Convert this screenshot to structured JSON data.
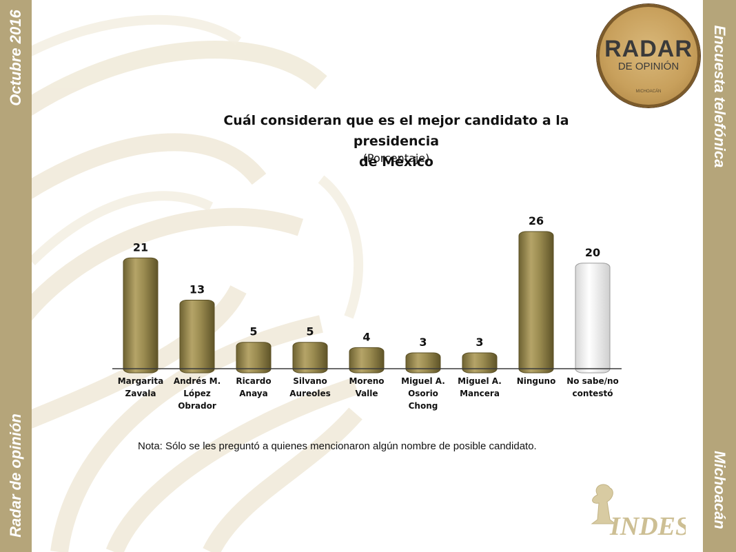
{
  "frame": {
    "top_left": "Octubre 2016",
    "bottom_left": "Radar de opinión",
    "top_right": "Encuesta telefónica",
    "bottom_right": "Michoacán"
  },
  "logo": {
    "line1": "RADAR",
    "line2": "DE OPINIÓN",
    "line3": "MICHOACÁN"
  },
  "brand_logo": "INDES",
  "colors": {
    "frame": "#b5a57a",
    "bar_gold": "#8a7d45",
    "bar_white": "#ffffff"
  },
  "chart_data": {
    "type": "bar",
    "title": "Cuál consideran que es el mejor candidato a la presidencia de México",
    "title_lines": [
      "Cuál consideran que es el mejor candidato a la presidencia",
      "de México"
    ],
    "subtitle": "(Porcentaje)",
    "categories": [
      [
        "Margarita",
        "Zavala"
      ],
      [
        "Andrés M.",
        "López",
        "Obrador"
      ],
      [
        "Ricardo",
        "Anaya"
      ],
      [
        "Silvano",
        "Aureoles"
      ],
      [
        "Moreno",
        "Valle"
      ],
      [
        "Miguel A.",
        "Osorio",
        "Chong"
      ],
      [
        "Miguel A.",
        "Mancera"
      ],
      [
        "Ninguno"
      ],
      [
        "No sabe/no",
        "contestó"
      ]
    ],
    "values": [
      21,
      13,
      5,
      5,
      4,
      3,
      3,
      26,
      20
    ],
    "bar_styles": [
      "gold",
      "gold",
      "gold",
      "gold",
      "gold",
      "gold",
      "gold",
      "gold",
      "white"
    ],
    "ylim": [
      0,
      26
    ],
    "grid": false
  },
  "note": "Nota: Sólo se les preguntó a quienes mencionaron algún nombre de posible candidato."
}
